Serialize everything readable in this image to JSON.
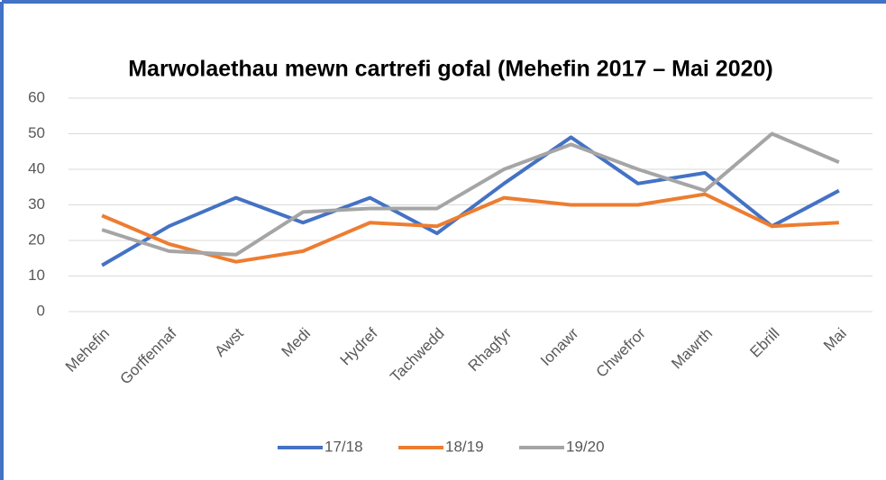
{
  "chart_data": {
    "type": "line",
    "title": "Marwolaethau mewn cartrefi gofal (Mehefin 2017 – Mai 2020)",
    "categories": [
      "Mehefin",
      "Gorffennaf",
      "Awst",
      "Medi",
      "Hydref",
      "Tachwedd",
      "Rhagfyr",
      "Ionawr",
      "Chwefror",
      "Mawrth",
      "Ebrill",
      "Mai"
    ],
    "series": [
      {
        "name": "17/18",
        "color": "#4472c4",
        "values": [
          13,
          24,
          32,
          25,
          32,
          22,
          36,
          49,
          36,
          39,
          24,
          34
        ]
      },
      {
        "name": "18/19",
        "color": "#ed7d31",
        "values": [
          27,
          19,
          14,
          17,
          25,
          24,
          32,
          30,
          30,
          33,
          24,
          25
        ]
      },
      {
        "name": "19/20",
        "color": "#a5a5a5",
        "values": [
          23,
          17,
          16,
          28,
          29,
          29,
          40,
          47,
          40,
          34,
          50,
          42
        ]
      }
    ],
    "ylim": [
      0,
      60
    ],
    "yticks": [
      0,
      10,
      20,
      30,
      40,
      50,
      60
    ],
    "grid": true,
    "legend": "bottom"
  }
}
